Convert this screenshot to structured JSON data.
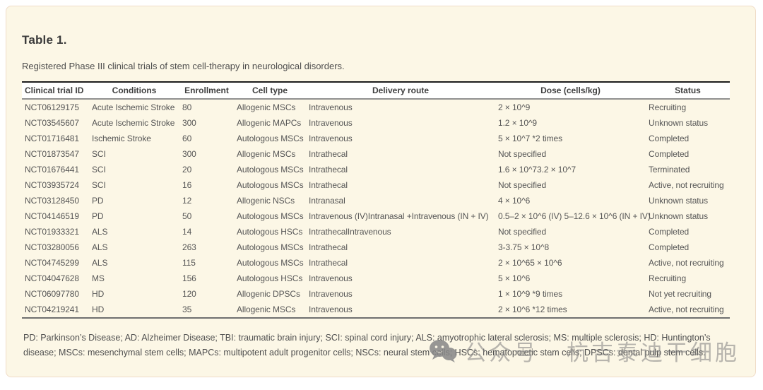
{
  "card": {
    "title": "Table 1.",
    "subtitle": "Registered Phase III clinical trials of stem cell-therapy in neurological disorders.",
    "footnote": "PD: Parkinson’s Disease; AD: Alzheimer Disease; TBI: traumatic brain injury; SCI: spinal cord injury; ALS: amyotrophic lateral sclerosis; MS: multiple sclerosis; HD: Huntington’s disease; MSCs: mesenchymal stem cells; MAPCs: multipotent adult progenitor cells; NSCs: neural stem cells; HSCs: hematopoietic stem cells; DPSCs: dental pulp stem cells."
  },
  "table": {
    "columns": [
      "Clinical trial ID",
      "Conditions",
      "Enrollment",
      "Cell type",
      "Delivery route",
      "Dose (cells/kg)",
      "Status"
    ],
    "rows": [
      [
        "NCT06129175",
        "Acute Ischemic Stroke",
        "80",
        "Allogenic MSCs",
        "Intravenous",
        "2 × 10^9",
        "Recruiting"
      ],
      [
        "NCT03545607",
        "Acute Ischemic Stroke",
        "300",
        "Allogenic MAPCs",
        "Intravenous",
        "1.2 × 10^9",
        "Unknown status"
      ],
      [
        "NCT01716481",
        "Ischemic Stroke",
        "60",
        "Autologous MSCs",
        "Intravenous",
        "5 × 10^7 *2 times",
        "Completed"
      ],
      [
        "NCT01873547",
        "SCI",
        "300",
        "Allogenic MSCs",
        "Intrathecal",
        "Not specified",
        "Completed"
      ],
      [
        "NCT01676441",
        "SCI",
        "20",
        "Autologous MSCs",
        "Intrathecal",
        "1.6 × 10^73.2 × 10^7",
        "Terminated"
      ],
      [
        "NCT03935724",
        "SCI",
        "16",
        "Autologous MSCs",
        "Intrathecal",
        "Not specified",
        "Active, not recruiting"
      ],
      [
        "NCT03128450",
        "PD",
        "12",
        "Allogenic NSCs",
        "Intranasal",
        "4 × 10^6",
        "Unknown status"
      ],
      [
        "NCT04146519",
        "PD",
        "50",
        "Autologous MSCs",
        "Intravenous (IV)Intranasal +Intravenous (IN + IV)",
        "0.5–2 × 10^6 (IV) 5–12.6 × 10^6 (IN + IV)",
        "Unknown status"
      ],
      [
        "NCT01933321",
        "ALS",
        "14",
        "Autologous HSCs",
        "IntrathecalIntravenous",
        "Not specified",
        "Completed"
      ],
      [
        "NCT03280056",
        "ALS",
        "263",
        "Autologous MSCs",
        "Intrathecal",
        "3-3.75 × 10^8",
        "Completed"
      ],
      [
        "NCT04745299",
        "ALS",
        "115",
        "Autologous MSCs",
        "Intrathecal",
        "2 × 10^65 × 10^6",
        "Active, not recruiting"
      ],
      [
        "NCT04047628",
        "MS",
        "156",
        "Autologous HSCs",
        "Intravenous",
        "5 × 10^6",
        "Recruiting"
      ],
      [
        "NCT06097780",
        "HD",
        "120",
        "Allogenic DPSCs",
        "Intravenous",
        "1 × 10^9 *9 times",
        "Not yet recruiting"
      ],
      [
        "NCT04219241",
        "HD",
        "35",
        "Allogenic MSCs",
        "Intravenous",
        "2 × 10^6 *12 times",
        "Active, not recruiting"
      ]
    ]
  },
  "watermark": {
    "icon": "wechat-icon",
    "text": "公众号 · 杭吉泰迪干细胞"
  },
  "colors": {
    "card_background": "#fcf7e6",
    "card_border": "#f0dcc7",
    "header_background": "#ffffff",
    "rule_dark": "#1c1c1c",
    "rule_gray": "#909090",
    "body_text": "#565656",
    "watermark_gray": "#7d7d7d"
  }
}
